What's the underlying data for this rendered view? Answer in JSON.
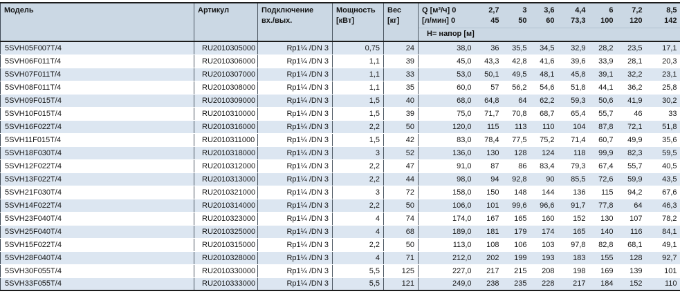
{
  "table": {
    "headers": {
      "model": "Модель",
      "article": "Артикул",
      "connection_line1": "Подключение",
      "connection_line2": "вх./вых.",
      "power_line1": "Мощность",
      "power_line2": "[кВт]",
      "weight_line1": "Вес",
      "weight_line2": "[кг]",
      "q_line1": "Q [м³/ч] 0",
      "q_line2": "[л/мин] 0",
      "head_row": "Н= напор [м]",
      "flow_columns": [
        {
          "m3h": "2,7",
          "lmin": "45"
        },
        {
          "m3h": "3",
          "lmin": "50"
        },
        {
          "m3h": "3,6",
          "lmin": "60"
        },
        {
          "m3h": "4,4",
          "lmin": "73,3"
        },
        {
          "m3h": "6",
          "lmin": "100"
        },
        {
          "m3h": "7,2",
          "lmin": "120"
        },
        {
          "m3h": "8,5",
          "lmin": "142"
        }
      ]
    },
    "rows": [
      {
        "model": "5SVH05F007T/4",
        "article": "RU2010305000",
        "connection": "Rp1¼ /DN 3",
        "power": "0,75",
        "weight": "24",
        "values": [
          "38,0",
          "36",
          "35,5",
          "34,5",
          "32,9",
          "28,2",
          "23,5",
          "17,1"
        ]
      },
      {
        "model": "5SVH06F011T/4",
        "article": "RU2010306000",
        "connection": "Rp1¼ /DN 3",
        "power": "1,1",
        "weight": "39",
        "values": [
          "45,0",
          "43,3",
          "42,8",
          "41,6",
          "39,6",
          "33,9",
          "28,1",
          "20,3"
        ]
      },
      {
        "model": "5SVH07F011T/4",
        "article": "RU2010307000",
        "connection": "Rp1¼ /DN 3",
        "power": "1,1",
        "weight": "33",
        "values": [
          "53,0",
          "50,1",
          "49,5",
          "48,1",
          "45,8",
          "39,1",
          "32,2",
          "23,1"
        ]
      },
      {
        "model": "5SVH08F011T/4",
        "article": "RU2010308000",
        "connection": "Rp1¼ /DN 3",
        "power": "1,1",
        "weight": "35",
        "values": [
          "60,0",
          "57",
          "56,2",
          "54,6",
          "51,8",
          "44,1",
          "36,2",
          "25,8"
        ]
      },
      {
        "model": "5SVH09F015T/4",
        "article": "RU2010309000",
        "connection": "Rp1¼ /DN 3",
        "power": "1,5",
        "weight": "40",
        "values": [
          "68,0",
          "64,8",
          "64",
          "62,2",
          "59,3",
          "50,6",
          "41,9",
          "30,2"
        ]
      },
      {
        "model": "5SVH10F015T/4",
        "article": "RU2010310000",
        "connection": "Rp1¼ /DN 3",
        "power": "1,5",
        "weight": "39",
        "values": [
          "75,0",
          "71,7",
          "70,8",
          "68,7",
          "65,4",
          "55,7",
          "46",
          "33"
        ]
      },
      {
        "model": "5SVH16F022T/4",
        "article": "RU2010316000",
        "connection": "Rp1¼ /DN 3",
        "power": "2,2",
        "weight": "50",
        "values": [
          "120,0",
          "115",
          "113",
          "110",
          "104",
          "87,8",
          "72,1",
          "51,8"
        ]
      },
      {
        "model": "5SVH11F015T/4",
        "article": "RU2010311000",
        "connection": "Rp1¼ /DN 3",
        "power": "1,5",
        "weight": "42",
        "values": [
          "83,0",
          "78,4",
          "77,5",
          "75,2",
          "71,4",
          "60,7",
          "49,9",
          "35,6"
        ]
      },
      {
        "model": "5SVH18F030T/4",
        "article": "RU2010318000",
        "connection": "Rp1¼ /DN 3",
        "power": "3",
        "weight": "52",
        "values": [
          "136,0",
          "130",
          "128",
          "124",
          "118",
          "99,9",
          "82,3",
          "59,5"
        ]
      },
      {
        "model": "5SVH12F022T/4",
        "article": "RU2010312000",
        "connection": "Rp1¼ /DN 3",
        "power": "2,2",
        "weight": "47",
        "values": [
          "91,0",
          "87",
          "86",
          "83,4",
          "79,3",
          "67,4",
          "55,7",
          "40,5"
        ]
      },
      {
        "model": "5SVH13F022T/4",
        "article": "RU2010313000",
        "connection": "Rp1¼ /DN 3",
        "power": "2,2",
        "weight": "44",
        "values": [
          "98,0",
          "94",
          "92,8",
          "90",
          "85,5",
          "72,6",
          "59,9",
          "43,5"
        ]
      },
      {
        "model": "5SVH21F030T/4",
        "article": "RU2010321000",
        "connection": "Rp1¼ /DN 3",
        "power": "3",
        "weight": "72",
        "values": [
          "158,0",
          "150",
          "148",
          "144",
          "136",
          "115",
          "94,2",
          "67,6"
        ]
      },
      {
        "model": "5SVH14F022T/4",
        "article": "RU2010314000",
        "connection": "Rp1¼ /DN 3",
        "power": "2,2",
        "weight": "50",
        "values": [
          "106,0",
          "101",
          "99,6",
          "96,6",
          "91,7",
          "77,8",
          "64",
          "46,3"
        ]
      },
      {
        "model": "5SVH23F040T/4",
        "article": "RU2010323000",
        "connection": "Rp1¼ /DN 3",
        "power": "4",
        "weight": "74",
        "values": [
          "174,0",
          "167",
          "165",
          "160",
          "152",
          "130",
          "107",
          "78,2"
        ]
      },
      {
        "model": "5SVH25F040T/4",
        "article": "RU2010325000",
        "connection": "Rp1¼ /DN 3",
        "power": "4",
        "weight": "68",
        "values": [
          "189,0",
          "181",
          "179",
          "174",
          "165",
          "140",
          "116",
          "84,1"
        ]
      },
      {
        "model": "5SVH15F022T/4",
        "article": "RU2010315000",
        "connection": "Rp1¼ /DN 3",
        "power": "2,2",
        "weight": "50",
        "values": [
          "113,0",
          "108",
          "106",
          "103",
          "97,8",
          "82,8",
          "68,1",
          "49,1"
        ]
      },
      {
        "model": "5SVH28F040T/4",
        "article": "RU2010328000",
        "connection": "Rp1¼ /DN 3",
        "power": "4",
        "weight": "71",
        "values": [
          "212,0",
          "202",
          "199",
          "193",
          "183",
          "155",
          "128",
          "92,7"
        ]
      },
      {
        "model": "5SVH30F055T/4",
        "article": "RU2010330000",
        "connection": "Rp1¼ /DN 3",
        "power": "5,5",
        "weight": "125",
        "values": [
          "227,0",
          "217",
          "215",
          "208",
          "198",
          "169",
          "139",
          "101"
        ]
      },
      {
        "model": "5SVH33F055T/4",
        "article": "RU2010333000",
        "connection": "Rp1¼ /DN 3",
        "power": "5,5",
        "weight": "121",
        "values": [
          "249,0",
          "238",
          "235",
          "228",
          "217",
          "184",
          "152",
          "110"
        ]
      }
    ]
  }
}
